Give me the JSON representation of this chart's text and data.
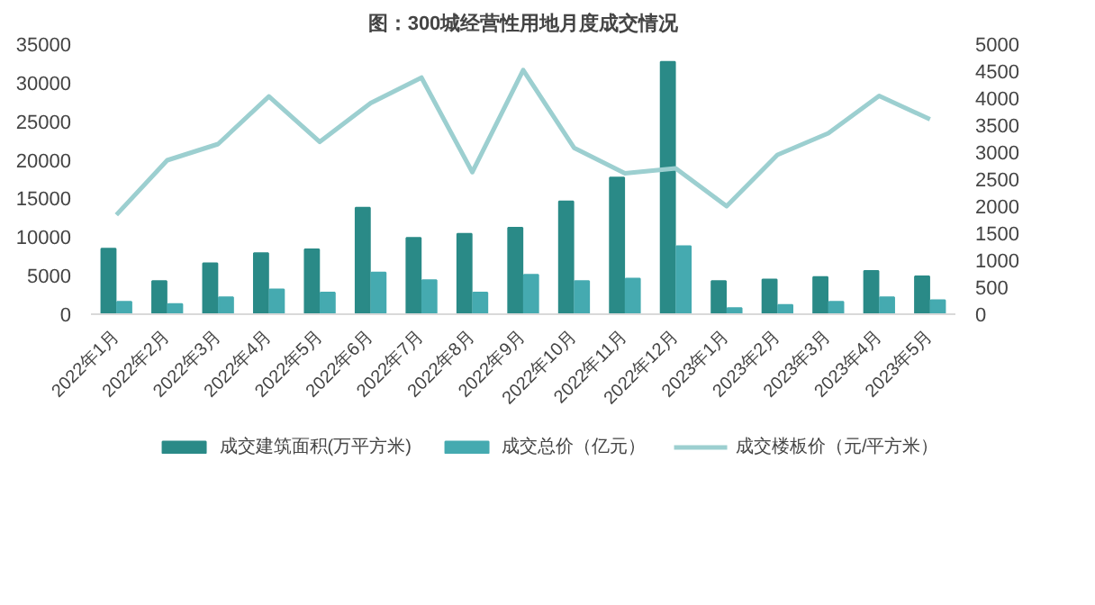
{
  "chart_data": {
    "type": "bar",
    "title": "图：300城经营性用地月度成交情况",
    "categories": [
      "2022年1月",
      "2022年2月",
      "2022年3月",
      "2022年4月",
      "2022年5月",
      "2022年6月",
      "2022年7月",
      "2022年8月",
      "2022年9月",
      "2022年10月",
      "2022年11月",
      "2022年12月",
      "2023年1月",
      "2023年2月",
      "2023年3月",
      "2023年4月",
      "2023年5月"
    ],
    "series": [
      {
        "name": "成交建筑面积(万平方米)",
        "color": "#2a8a87",
        "values": [
          8500,
          4300,
          6600,
          7900,
          8400,
          13800,
          9900,
          10400,
          11200,
          14600,
          17700,
          32700,
          4300,
          4500,
          4800,
          5600,
          4900
        ]
      },
      {
        "name": "成交总价（亿元）",
        "color": "#45aab0",
        "values": [
          1600,
          1300,
          2200,
          3200,
          2800,
          5400,
          4400,
          2800,
          5100,
          4300,
          4600,
          8800,
          800,
          1200,
          1600,
          2200,
          1800
        ]
      },
      {
        "name": "成交楼板价（元/平方米）",
        "color": "#9ccfd0",
        "type": "line",
        "axis": "y2",
        "values": [
          1840,
          2850,
          3150,
          4030,
          3190,
          3910,
          4380,
          2630,
          4520,
          3080,
          2610,
          2700,
          2000,
          2950,
          3350,
          4040,
          3610
        ]
      }
    ],
    "ylim": [
      0,
      35000
    ],
    "yticks": [
      0,
      5000,
      10000,
      15000,
      20000,
      25000,
      30000,
      35000
    ],
    "y2lim": [
      0,
      5000
    ],
    "y2ticks": [
      0,
      500,
      1000,
      1500,
      2000,
      2500,
      3000,
      3500,
      4000,
      4500,
      5000
    ],
    "grid": false,
    "legend": "bottom"
  }
}
